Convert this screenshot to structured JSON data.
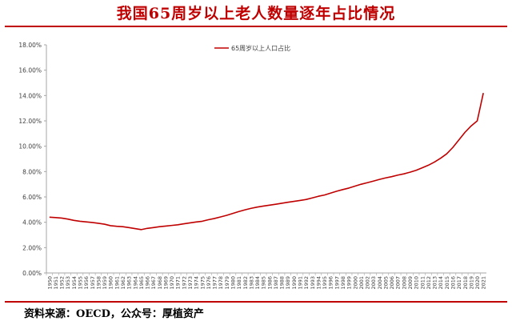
{
  "header": {
    "title": "我国65周岁以上老人数量逐年占比情况"
  },
  "footer": {
    "source": "资料来源：OECD，公众号：厚植资产"
  },
  "chart_data": {
    "type": "line",
    "ylim": [
      0,
      18
    ],
    "yticks": [
      "0.00%",
      "2.00%",
      "4.00%",
      "6.00%",
      "8.00%",
      "10.00%",
      "12.00%",
      "14.00%",
      "16.00%",
      "18.00%"
    ],
    "legend": "top-center",
    "grid": false,
    "x": [
      "1950",
      "1951",
      "1952",
      "1953",
      "1954",
      "1955",
      "1956",
      "1957",
      "1958",
      "1959",
      "1960",
      "1961",
      "1962",
      "1963",
      "1964",
      "1965",
      "1966",
      "1967",
      "1968",
      "1969",
      "1970",
      "1971",
      "1972",
      "1973",
      "1974",
      "1975",
      "1976",
      "1977",
      "1978",
      "1979",
      "1980",
      "1981",
      "1982",
      "1983",
      "1984",
      "1985",
      "1986",
      "1987",
      "1988",
      "1989",
      "1990",
      "1991",
      "1992",
      "1993",
      "1994",
      "1995",
      "1996",
      "1997",
      "1998",
      "1999",
      "2000",
      "2001",
      "2002",
      "2003",
      "2004",
      "2005",
      "2006",
      "2007",
      "2008",
      "2009",
      "2010",
      "2011",
      "2012",
      "2013",
      "2014",
      "2015",
      "2016",
      "2017",
      "2018",
      "2019",
      "2020",
      "2021"
    ],
    "series": [
      {
        "name": "65周岁以上人口占比",
        "color": "#c00000",
        "values": [
          4.4,
          4.37,
          4.33,
          4.25,
          4.15,
          4.08,
          4.03,
          3.98,
          3.92,
          3.85,
          3.73,
          3.68,
          3.65,
          3.58,
          3.5,
          3.42,
          3.52,
          3.58,
          3.65,
          3.7,
          3.75,
          3.8,
          3.88,
          3.95,
          4.02,
          4.08,
          4.2,
          4.3,
          4.42,
          4.55,
          4.7,
          4.85,
          4.98,
          5.1,
          5.2,
          5.28,
          5.35,
          5.42,
          5.5,
          5.58,
          5.65,
          5.72,
          5.8,
          5.92,
          6.05,
          6.15,
          6.3,
          6.45,
          6.58,
          6.7,
          6.85,
          7.0,
          7.12,
          7.25,
          7.38,
          7.5,
          7.6,
          7.72,
          7.82,
          7.95,
          8.1,
          8.3,
          8.5,
          8.75,
          9.05,
          9.4,
          9.9,
          10.5,
          11.1,
          11.6,
          12.0,
          14.2
        ]
      }
    ]
  }
}
